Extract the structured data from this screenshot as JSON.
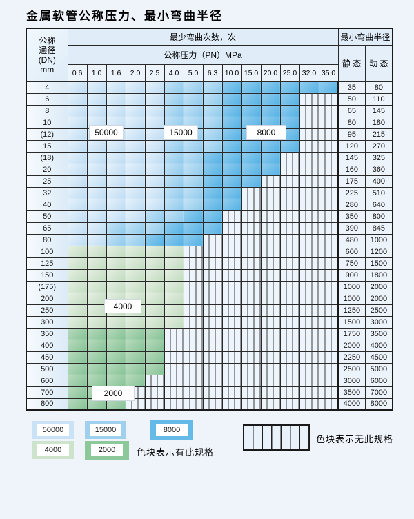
{
  "title": "金属软管公称压力、最小弯曲半径",
  "table": {
    "dn_header": [
      "公称",
      "通径",
      "(DN)",
      "mm"
    ],
    "bend_cycles_header": "最少弯曲次数，次",
    "pressure_header": "公称压力（PN）MPa",
    "radius_header": "最小弯曲半径",
    "static_label": "静 态",
    "dynamic_label": "动 态",
    "pressure_columns": [
      "0.6",
      "1.0",
      "1.6",
      "2.0",
      "2.5",
      "4.0",
      "5.0",
      "6.3",
      "10.0",
      "15.0",
      "20.0",
      "25.0",
      "32.0",
      "35.0"
    ],
    "rows": [
      {
        "dn": "4",
        "group": "blue",
        "z50000_end": 5,
        "z15000_end": 8,
        "spec_end": 14,
        "static": "35",
        "dynamic": "80"
      },
      {
        "dn": "6",
        "group": "blue",
        "z50000_end": 5,
        "z15000_end": 8,
        "spec_end": 12,
        "static": "50",
        "dynamic": "110"
      },
      {
        "dn": "8",
        "group": "blue",
        "z50000_end": 5,
        "z15000_end": 8,
        "spec_end": 12,
        "static": "65",
        "dynamic": "145"
      },
      {
        "dn": "10",
        "group": "blue",
        "z50000_end": 5,
        "z15000_end": 8,
        "spec_end": 12,
        "static": "80",
        "dynamic": "180"
      },
      {
        "dn": "(12)",
        "group": "blue",
        "z50000_end": 5,
        "z15000_end": 8,
        "spec_end": 12,
        "static": "95",
        "dynamic": "215"
      },
      {
        "dn": "15",
        "group": "blue",
        "z50000_end": 5,
        "z15000_end": 8,
        "spec_end": 12,
        "static": "120",
        "dynamic": "270"
      },
      {
        "dn": "(18)",
        "group": "blue",
        "z50000_end": 5,
        "z15000_end": 7,
        "spec_end": 11,
        "static": "145",
        "dynamic": "325"
      },
      {
        "dn": "20",
        "group": "blue",
        "z50000_end": 5,
        "z15000_end": 7,
        "spec_end": 11,
        "static": "160",
        "dynamic": "360"
      },
      {
        "dn": "25",
        "group": "blue",
        "z50000_end": 5,
        "z15000_end": 7,
        "spec_end": 10,
        "static": "175",
        "dynamic": "400"
      },
      {
        "dn": "32",
        "group": "blue",
        "z50000_end": 5,
        "z15000_end": 7,
        "spec_end": 9,
        "static": "225",
        "dynamic": "510"
      },
      {
        "dn": "40",
        "group": "blue",
        "z50000_end": 5,
        "z15000_end": 7,
        "spec_end": 9,
        "static": "280",
        "dynamic": "640"
      },
      {
        "dn": "50",
        "group": "blue",
        "z50000_end": 4,
        "z15000_end": 6,
        "spec_end": 8,
        "static": "350",
        "dynamic": "800"
      },
      {
        "dn": "65",
        "group": "blue",
        "z50000_end": 2,
        "z15000_end": 5,
        "spec_end": 8,
        "static": "390",
        "dynamic": "845"
      },
      {
        "dn": "80",
        "group": "blue",
        "z50000_end": 2,
        "z15000_end": 4,
        "spec_end": 7,
        "static": "480",
        "dynamic": "1000"
      },
      {
        "dn": "100",
        "group": "4000",
        "spec_end": 6,
        "static": "600",
        "dynamic": "1200"
      },
      {
        "dn": "125",
        "group": "4000",
        "spec_end": 6,
        "static": "750",
        "dynamic": "1500"
      },
      {
        "dn": "150",
        "group": "4000",
        "spec_end": 6,
        "static": "900",
        "dynamic": "1800"
      },
      {
        "dn": "(175)",
        "group": "4000",
        "spec_end": 6,
        "static": "1000",
        "dynamic": "2000"
      },
      {
        "dn": "200",
        "group": "4000",
        "spec_end": 6,
        "static": "1000",
        "dynamic": "2000"
      },
      {
        "dn": "250",
        "group": "4000",
        "spec_end": 6,
        "static": "1250",
        "dynamic": "2500"
      },
      {
        "dn": "300",
        "group": "4000",
        "spec_end": 6,
        "static": "1500",
        "dynamic": "3000"
      },
      {
        "dn": "350",
        "group": "2000",
        "spec_end": 5,
        "static": "1750",
        "dynamic": "3500"
      },
      {
        "dn": "400",
        "group": "2000",
        "spec_end": 5,
        "static": "2000",
        "dynamic": "4000"
      },
      {
        "dn": "450",
        "group": "2000",
        "spec_end": 5,
        "static": "2250",
        "dynamic": "4500"
      },
      {
        "dn": "500",
        "group": "2000",
        "spec_end": 5,
        "static": "2500",
        "dynamic": "5000"
      },
      {
        "dn": "600",
        "group": "2000",
        "spec_end": 4,
        "static": "3000",
        "dynamic": "6000"
      },
      {
        "dn": "700",
        "group": "2000",
        "spec_end": 3,
        "static": "3500",
        "dynamic": "7000"
      },
      {
        "dn": "800",
        "group": "2000",
        "spec_end": 3,
        "static": "4000",
        "dynamic": "8000"
      }
    ]
  },
  "zone_labels": [
    {
      "text": "50000"
    },
    {
      "text": "15000"
    },
    {
      "text": "8000"
    },
    {
      "text": "4000"
    },
    {
      "text": "2000"
    }
  ],
  "legend": {
    "items": [
      {
        "cycles": "50000",
        "color": "#c9e2f5"
      },
      {
        "cycles": "15000",
        "color": "#9fd0ee"
      },
      {
        "cycles": "8000",
        "color": "#66bae7"
      },
      {
        "cycles": "4000",
        "color": "#cde3cb"
      },
      {
        "cycles": "2000",
        "color": "#8cc89a"
      }
    ],
    "has_spec_note": "色块表示有此规格",
    "no_spec_note": "色块表示无此规格"
  },
  "colors": {
    "page_bg": "#eef4fa",
    "grid_line": "#2a2a2a",
    "zone_50000": "#bedcf3",
    "zone_15000": "#8fcaec",
    "zone_8000": "#54b2e4",
    "zone_4000": "#c2dcc0",
    "zone_2000": "#86c396",
    "no_spec_bg": "#edf4fb"
  }
}
